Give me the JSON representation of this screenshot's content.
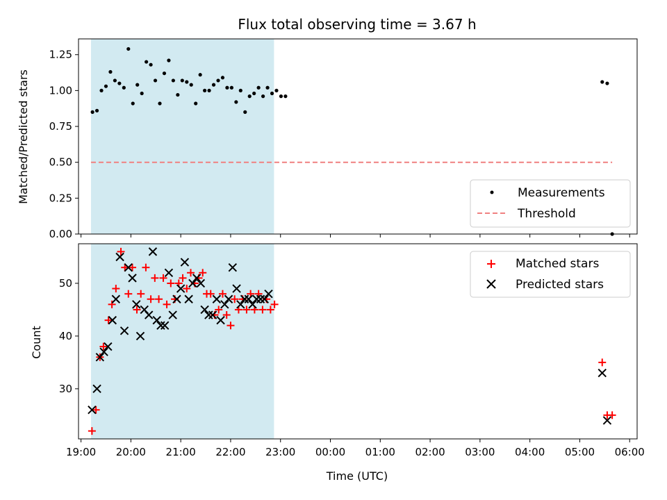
{
  "chart_data": [
    {
      "type": "scatter",
      "title": "Flux total observing time = 3.67 h",
      "xlabel": "",
      "ylabel": "Matched/Predicted stars",
      "ylim": [
        0,
        1.36
      ],
      "xlim_hours": [
        18.95,
        30.15
      ],
      "yticks": [
        "0.00",
        "0.25",
        "0.50",
        "0.75",
        "1.00",
        "1.25"
      ],
      "shaded_region_hours": [
        19.2,
        22.87
      ],
      "shaded_color": "#add8e6",
      "legend_position": "lower-right",
      "series": [
        {
          "name": "Measurements",
          "marker": "dot",
          "color": "#000000",
          "points": [
            [
              19.23,
              0.85
            ],
            [
              19.32,
              0.86
            ],
            [
              19.41,
              1.0
            ],
            [
              19.5,
              1.03
            ],
            [
              19.59,
              1.13
            ],
            [
              19.68,
              1.07
            ],
            [
              19.77,
              1.05
            ],
            [
              19.86,
              1.02
            ],
            [
              19.95,
              1.29
            ],
            [
              20.04,
              0.91
            ],
            [
              20.13,
              1.04
            ],
            [
              20.22,
              0.98
            ],
            [
              20.31,
              1.2
            ],
            [
              20.4,
              1.18
            ],
            [
              20.49,
              1.07
            ],
            [
              20.58,
              0.91
            ],
            [
              20.67,
              1.12
            ],
            [
              20.76,
              1.21
            ],
            [
              20.85,
              1.07
            ],
            [
              20.94,
              0.97
            ],
            [
              21.03,
              1.07
            ],
            [
              21.12,
              1.06
            ],
            [
              21.21,
              1.04
            ],
            [
              21.3,
              0.91
            ],
            [
              21.39,
              1.11
            ],
            [
              21.48,
              1.0
            ],
            [
              21.57,
              1.0
            ],
            [
              21.66,
              1.04
            ],
            [
              21.75,
              1.07
            ],
            [
              21.84,
              1.09
            ],
            [
              21.93,
              1.02
            ],
            [
              22.02,
              1.02
            ],
            [
              22.11,
              0.92
            ],
            [
              22.2,
              1.0
            ],
            [
              22.29,
              0.85
            ],
            [
              22.38,
              0.96
            ],
            [
              22.47,
              0.98
            ],
            [
              22.56,
              1.02
            ],
            [
              22.65,
              0.96
            ],
            [
              22.74,
              1.02
            ],
            [
              22.83,
              0.98
            ],
            [
              22.92,
              1.0
            ],
            [
              23.01,
              0.96
            ],
            [
              23.1,
              0.96
            ],
            [
              29.45,
              1.06
            ],
            [
              29.55,
              1.05
            ],
            [
              29.65,
              0.0
            ]
          ]
        },
        {
          "name": "Threshold",
          "marker": "dashed-line",
          "color": "#f08080",
          "points": [
            [
              19.2,
              0.5
            ],
            [
              29.65,
              0.5
            ]
          ]
        }
      ]
    },
    {
      "type": "scatter",
      "title": "",
      "xlabel": "Time (UTC)",
      "ylabel": "Count",
      "ylim": [
        20.5,
        57.5
      ],
      "xlim_hours": [
        18.95,
        30.15
      ],
      "yticks": [
        "30",
        "40",
        "50"
      ],
      "xticks": [
        "19:00",
        "20:00",
        "21:00",
        "22:00",
        "23:00",
        "00:00",
        "01:00",
        "02:00",
        "03:00",
        "04:00",
        "05:00",
        "06:00"
      ],
      "shaded_region_hours": [
        19.2,
        22.87
      ],
      "shaded_color": "#add8e6",
      "legend_position": "upper-right",
      "series": [
        {
          "name": "Matched stars",
          "marker": "plus",
          "color": "#ff0000",
          "points": [
            [
              19.22,
              22
            ],
            [
              19.3,
              26
            ],
            [
              19.38,
              36
            ],
            [
              19.45,
              38
            ],
            [
              19.55,
              43
            ],
            [
              19.62,
              46
            ],
            [
              19.7,
              49
            ],
            [
              19.8,
              56
            ],
            [
              19.88,
              53
            ],
            [
              19.95,
              48
            ],
            [
              20.03,
              53
            ],
            [
              20.12,
              45
            ],
            [
              20.2,
              48
            ],
            [
              20.3,
              53
            ],
            [
              20.4,
              47
            ],
            [
              20.48,
              51
            ],
            [
              20.56,
              47
            ],
            [
              20.65,
              51
            ],
            [
              20.72,
              46
            ],
            [
              20.8,
              50
            ],
            [
              20.88,
              47
            ],
            [
              20.96,
              50
            ],
            [
              21.04,
              51
            ],
            [
              21.12,
              49
            ],
            [
              21.2,
              52
            ],
            [
              21.28,
              50
            ],
            [
              21.36,
              51
            ],
            [
              21.44,
              52
            ],
            [
              21.52,
              48
            ],
            [
              21.6,
              48
            ],
            [
              21.68,
              44
            ],
            [
              21.76,
              45
            ],
            [
              21.84,
              48
            ],
            [
              21.92,
              44
            ],
            [
              22.0,
              42
            ],
            [
              22.08,
              47
            ],
            [
              22.16,
              45
            ],
            [
              22.24,
              47
            ],
            [
              22.32,
              45
            ],
            [
              22.4,
              48
            ],
            [
              22.48,
              45
            ],
            [
              22.56,
              48
            ],
            [
              22.64,
              45
            ],
            [
              22.72,
              47
            ],
            [
              22.8,
              45
            ],
            [
              22.88,
              46
            ],
            [
              29.45,
              35
            ],
            [
              29.55,
              25
            ],
            [
              29.65,
              25
            ]
          ]
        },
        {
          "name": "Predicted stars",
          "marker": "x",
          "color": "#000000",
          "points": [
            [
              19.22,
              26
            ],
            [
              19.32,
              30
            ],
            [
              19.38,
              36
            ],
            [
              19.46,
              37
            ],
            [
              19.54,
              38
            ],
            [
              19.63,
              43
            ],
            [
              19.7,
              47
            ],
            [
              19.78,
              55
            ],
            [
              19.87,
              41
            ],
            [
              19.95,
              53
            ],
            [
              20.03,
              51
            ],
            [
              20.11,
              46
            ],
            [
              20.19,
              40
            ],
            [
              20.27,
              45
            ],
            [
              20.36,
              44
            ],
            [
              20.44,
              56
            ],
            [
              20.52,
              43
            ],
            [
              20.6,
              42
            ],
            [
              20.68,
              42
            ],
            [
              20.76,
              52
            ],
            [
              20.84,
              44
            ],
            [
              20.92,
              47
            ],
            [
              21.0,
              49
            ],
            [
              21.08,
              54
            ],
            [
              21.16,
              47
            ],
            [
              21.24,
              50
            ],
            [
              21.32,
              51
            ],
            [
              21.4,
              50
            ],
            [
              21.48,
              45
            ],
            [
              21.56,
              44
            ],
            [
              21.64,
              44
            ],
            [
              21.72,
              47
            ],
            [
              21.8,
              43
            ],
            [
              21.88,
              46
            ],
            [
              21.96,
              47
            ],
            [
              22.04,
              53
            ],
            [
              22.12,
              49
            ],
            [
              22.2,
              46
            ],
            [
              22.28,
              47
            ],
            [
              22.36,
              47
            ],
            [
              22.44,
              46
            ],
            [
              22.52,
              47
            ],
            [
              22.6,
              47
            ],
            [
              22.68,
              47
            ],
            [
              22.76,
              48
            ],
            [
              29.45,
              33
            ],
            [
              29.55,
              24
            ]
          ]
        }
      ]
    }
  ]
}
